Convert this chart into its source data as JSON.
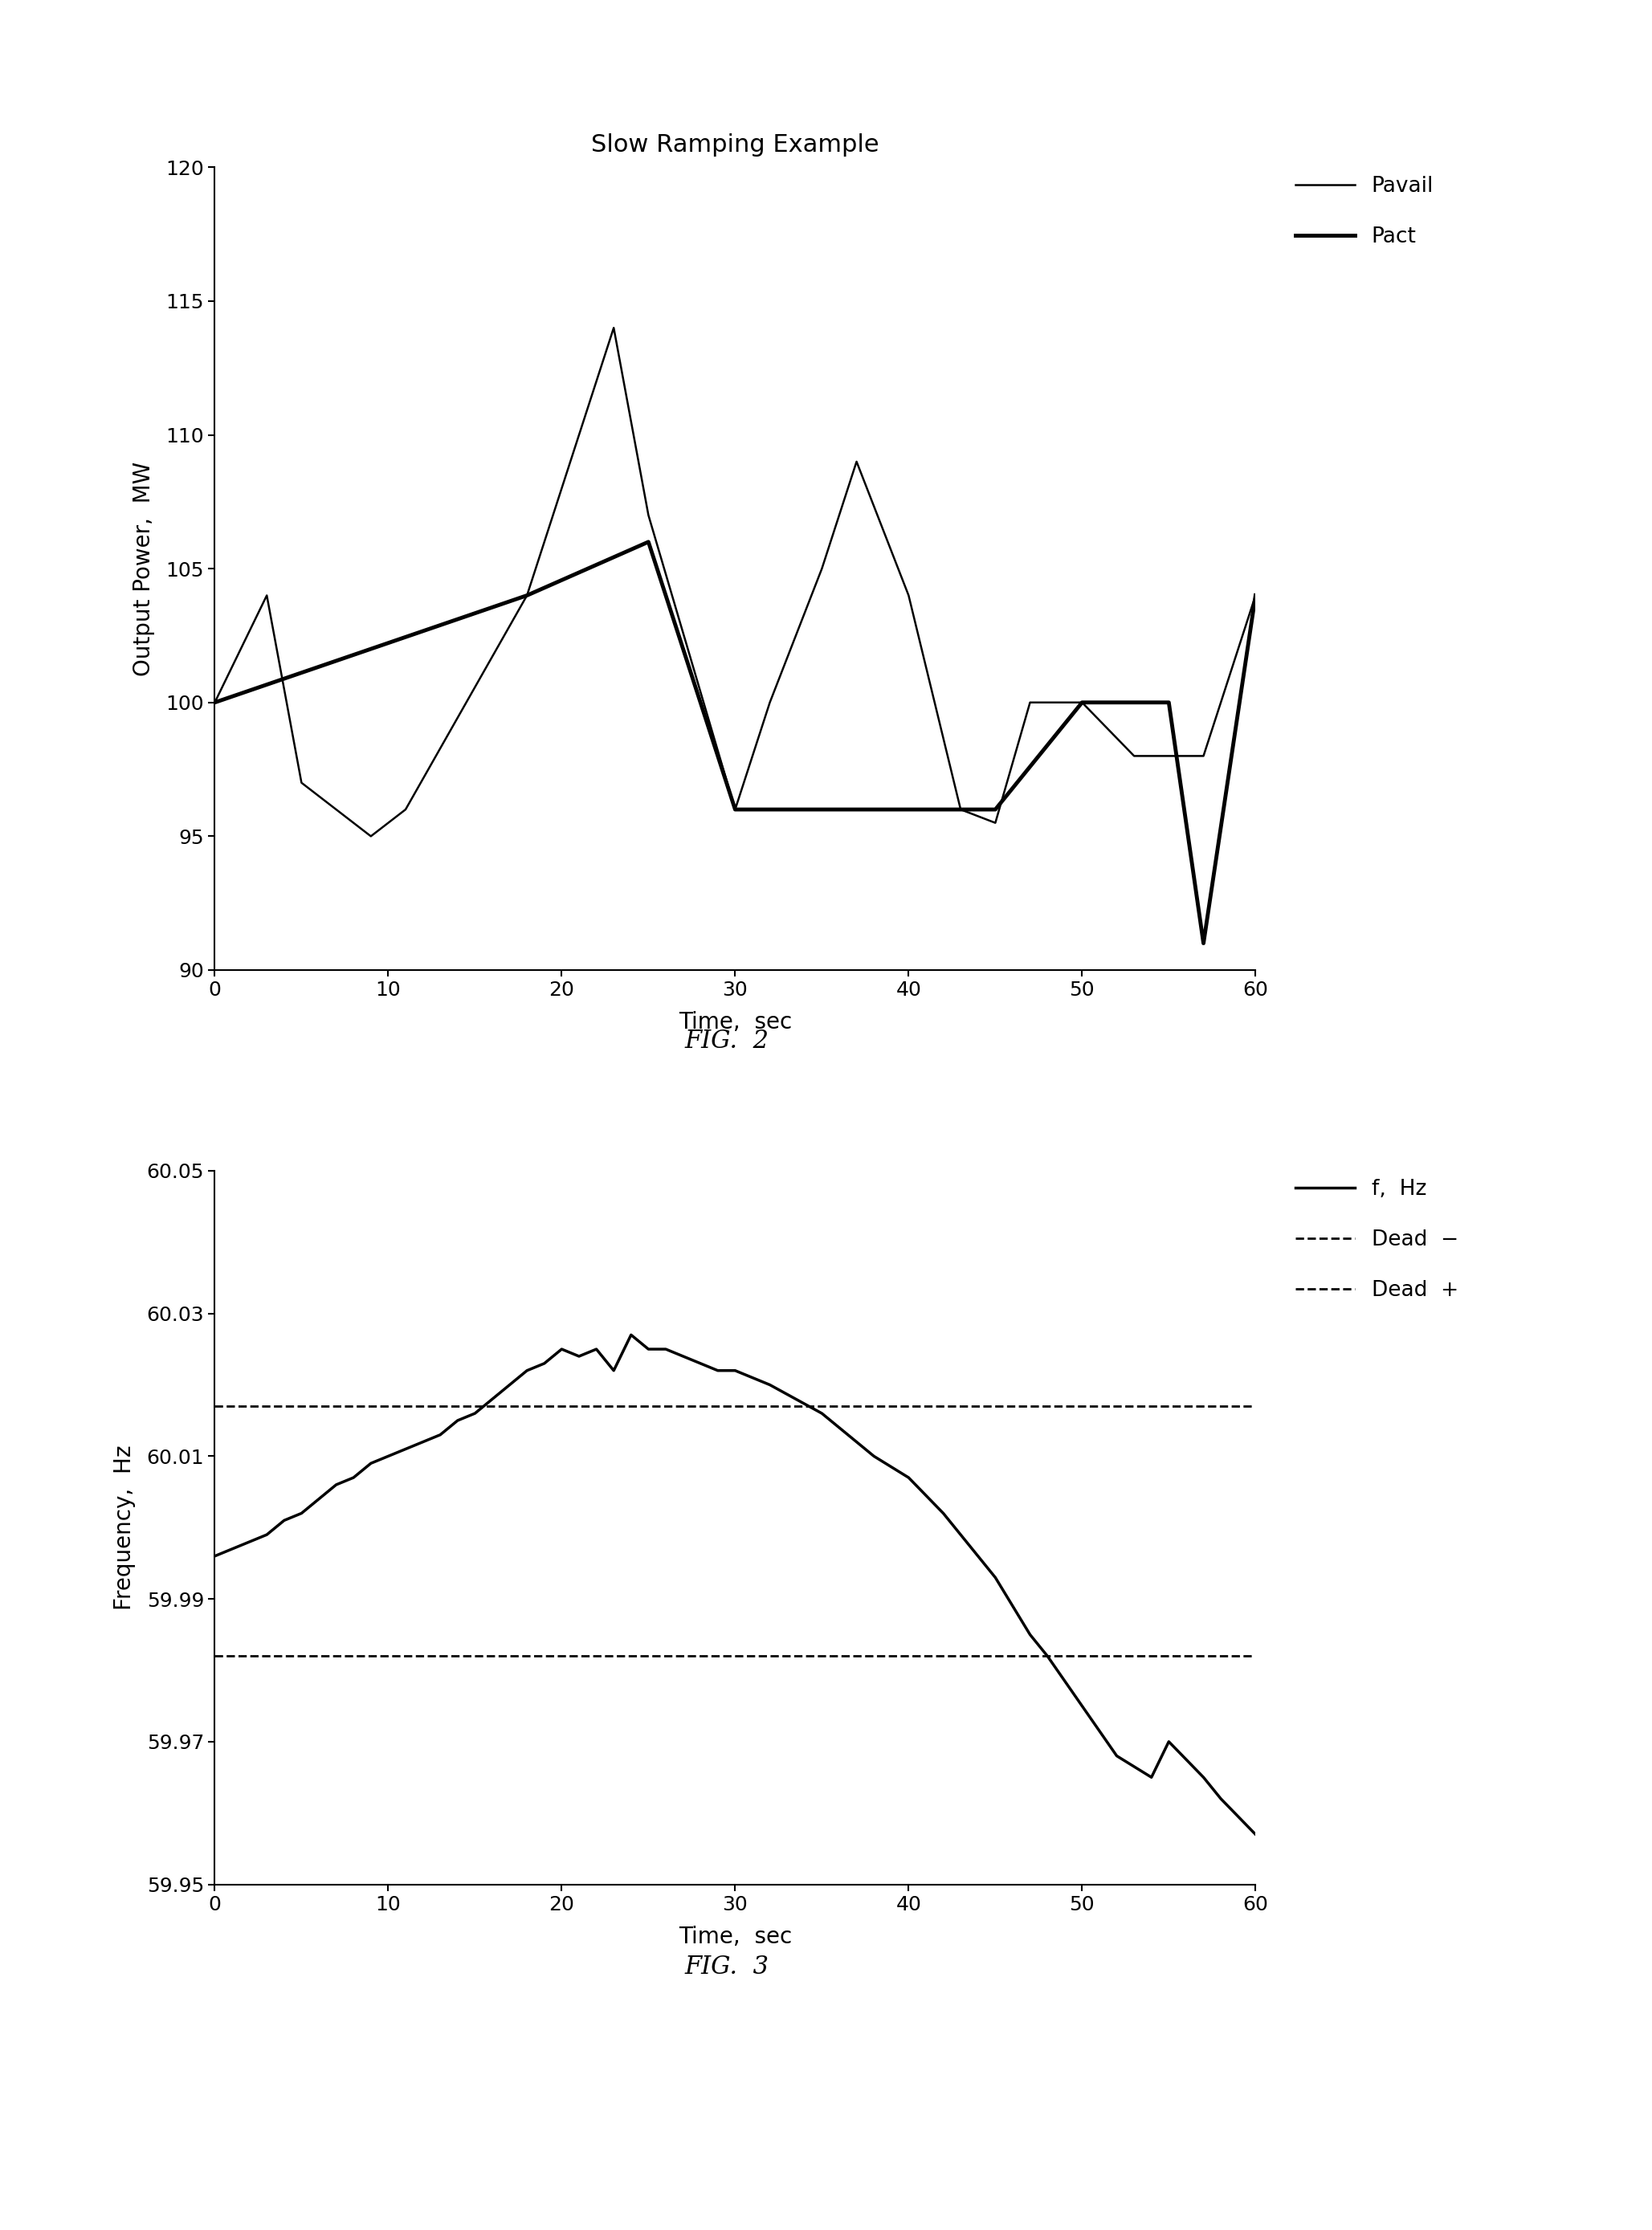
{
  "fig2": {
    "title": "Slow Ramping Example",
    "xlabel": "Time,  sec",
    "ylabel": "Output Power,  MW",
    "xlim": [
      0,
      60
    ],
    "ylim": [
      90,
      120
    ],
    "yticks": [
      90,
      95,
      100,
      105,
      110,
      115,
      120
    ],
    "xticks": [
      0,
      10,
      20,
      30,
      40,
      50,
      60
    ],
    "pavail_x": [
      0,
      3,
      5,
      7,
      9,
      11,
      18,
      23,
      25,
      30,
      32,
      35,
      37,
      40,
      43,
      45,
      47,
      50,
      53,
      57,
      60
    ],
    "pavail_y": [
      100,
      104,
      97,
      96,
      95,
      96,
      104,
      114,
      107,
      96,
      100,
      105,
      109,
      104,
      96,
      95.5,
      100,
      100,
      98,
      98,
      104
    ],
    "pact_x": [
      0,
      18,
      25,
      30,
      45,
      50,
      55,
      57,
      60
    ],
    "pact_y": [
      100,
      104,
      106,
      96,
      96,
      100,
      100,
      91,
      104
    ],
    "pavail_linewidth": 1.8,
    "pact_linewidth": 3.5,
    "legend_pavail": "Pavail",
    "legend_pact": "Pact",
    "line_color": "#000000",
    "fig_caption": "FIG.  2"
  },
  "fig3": {
    "xlabel": "Time,  sec",
    "ylabel": "Frequency,  Hz",
    "xlim": [
      0,
      60
    ],
    "ylim": [
      59.95,
      60.05
    ],
    "yticks": [
      59.95,
      59.97,
      59.99,
      60.01,
      60.03,
      60.05
    ],
    "xticks": [
      0,
      10,
      20,
      30,
      40,
      50,
      60
    ],
    "freq_x": [
      0,
      1,
      2,
      3,
      4,
      5,
      6,
      7,
      8,
      9,
      10,
      11,
      12,
      13,
      14,
      15,
      16,
      17,
      18,
      19,
      20,
      21,
      22,
      23,
      24,
      25,
      26,
      27,
      28,
      29,
      30,
      32,
      35,
      38,
      40,
      42,
      45,
      47,
      48,
      50,
      52,
      54,
      55,
      57,
      58,
      60
    ],
    "freq_y": [
      59.996,
      59.997,
      59.998,
      59.999,
      60.001,
      60.002,
      60.004,
      60.006,
      60.007,
      60.009,
      60.01,
      60.011,
      60.012,
      60.013,
      60.015,
      60.016,
      60.018,
      60.02,
      60.022,
      60.023,
      60.025,
      60.024,
      60.025,
      60.022,
      60.027,
      60.025,
      60.025,
      60.024,
      60.023,
      60.022,
      60.022,
      60.02,
      60.016,
      60.01,
      60.007,
      60.002,
      59.993,
      59.985,
      59.982,
      59.975,
      59.968,
      59.965,
      59.97,
      59.965,
      59.962,
      59.957
    ],
    "dead_minus": 59.982,
    "dead_plus": 60.017,
    "freq_linewidth": 2.5,
    "dead_linewidth": 2.0,
    "line_color": "#000000",
    "legend_freq": "f,  Hz",
    "legend_dead_minus": "Dead  −",
    "legend_dead_plus": "Dead  +",
    "fig_caption": "FIG.  3"
  },
  "background_color": "#ffffff"
}
